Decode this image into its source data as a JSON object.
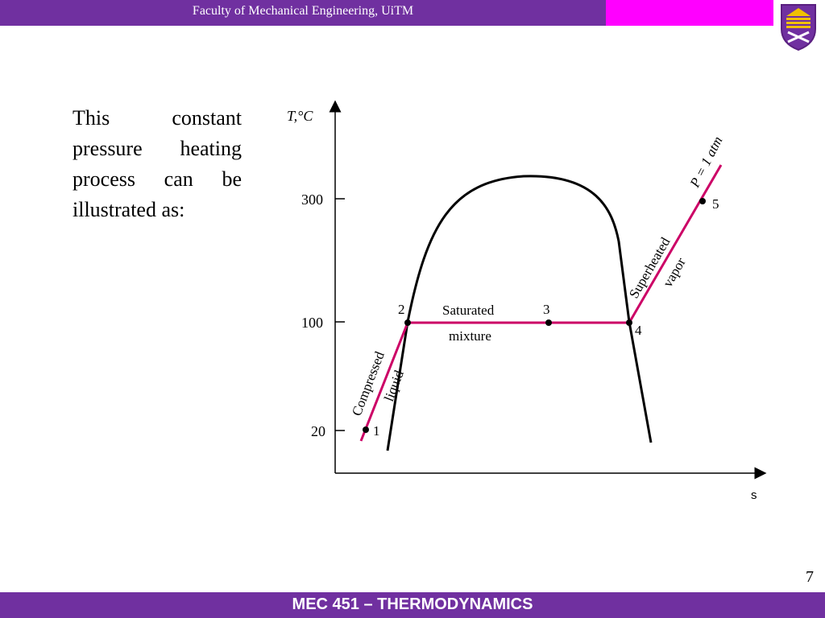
{
  "header": {
    "title": "Faculty of Mechanical Engineering, UiTM"
  },
  "logo": {
    "icon": "uitm-crest-icon"
  },
  "body_text": "This constant pressure heating process can be illustrated as:",
  "diagram": {
    "y_axis_label": "T,°C",
    "x_axis_label": "s",
    "y_ticks": [
      "300",
      "100",
      "20"
    ],
    "points": [
      "1",
      "2",
      "3",
      "4",
      "5"
    ],
    "regions": {
      "compressed_liquid": [
        "Compressed",
        "liquid"
      ],
      "saturated_mixture": [
        "Saturated",
        "mixture"
      ],
      "superheated_vapor": [
        "Superheated",
        "vapor"
      ]
    },
    "pressure_label": "P = 1 atm",
    "colors": {
      "process_line": "#cc0066",
      "dome": "#000000"
    }
  },
  "footer": {
    "page_number": "7",
    "course_title": "MEC 451 – THERMODYNAMICS"
  },
  "colors": {
    "bar": "#7030a0",
    "accent": "#ff00ff"
  }
}
